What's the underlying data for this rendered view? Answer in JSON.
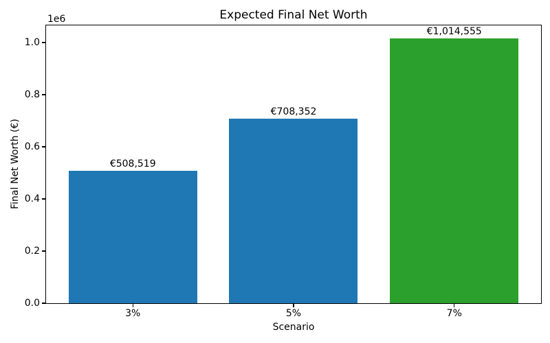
{
  "chart_data": {
    "type": "bar",
    "title": "Expected Final Net Worth",
    "xlabel": "Scenario",
    "ylabel": "Final Net Worth (€)",
    "offset_text": "1e6",
    "categories": [
      "3%",
      "5%",
      "7%"
    ],
    "values": [
      508519,
      708352,
      1014555
    ],
    "bar_labels": [
      "€508,519",
      "€708,352",
      "€1,014,555"
    ],
    "bar_colors": [
      "#1f77b4",
      "#1f77b4",
      "#2ca02c"
    ],
    "y_ticks": [
      {
        "value": 0,
        "label": "0.0"
      },
      {
        "value": 200000,
        "label": "0.2"
      },
      {
        "value": 400000,
        "label": "0.4"
      },
      {
        "value": 600000,
        "label": "0.6"
      },
      {
        "value": 800000,
        "label": "0.8"
      },
      {
        "value": 1000000,
        "label": "1.0"
      }
    ],
    "ylim": [
      0,
      1065283
    ],
    "xlim": [
      -0.54,
      2.54
    ],
    "bar_rel_width": 0.8,
    "grid": false,
    "legend_position": "none"
  }
}
